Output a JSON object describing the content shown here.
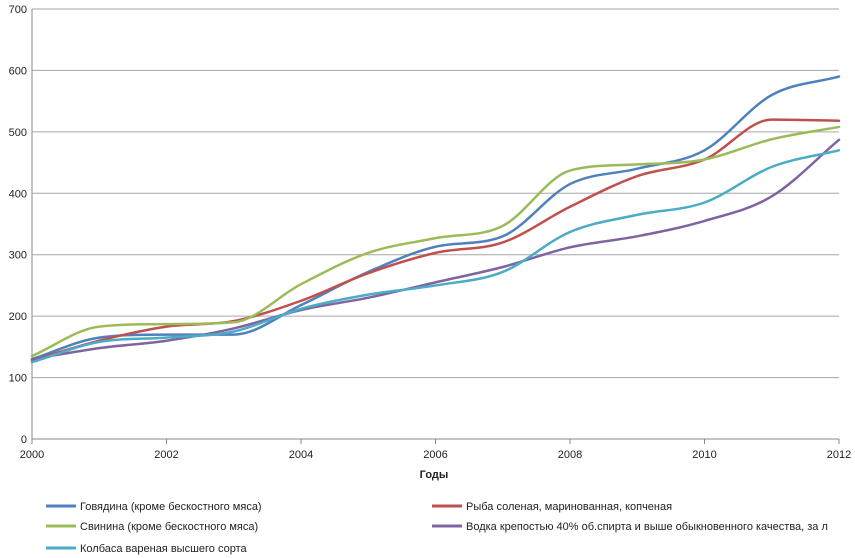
{
  "chart_data": {
    "type": "line",
    "title": "",
    "xlabel": "Годы",
    "ylabel": "",
    "xlim": [
      2000,
      2012
    ],
    "ylim": [
      0,
      700
    ],
    "x_ticks": [
      "2000",
      "2002",
      "2004",
      "2006",
      "2008",
      "2010",
      "2012"
    ],
    "y_ticks": [
      "0",
      "100",
      "200",
      "300",
      "400",
      "500",
      "600",
      "700"
    ],
    "grid": "horizontal",
    "legend_position": "bottom",
    "x": [
      2000,
      2001,
      2002,
      2003,
      2004,
      2005,
      2006,
      2007,
      2008,
      2009,
      2010,
      2011,
      2012
    ],
    "series": [
      {
        "name": "Говядина (кроме бескостного мяса)",
        "color": "#4f81bd",
        "values": [
          130,
          165,
          170,
          170,
          218,
          272,
          313,
          330,
          415,
          440,
          470,
          560,
          590
        ]
      },
      {
        "name": "Рыба соленая, маринованная, копченая",
        "color": "#c0504d",
        "values": [
          128,
          160,
          183,
          192,
          225,
          270,
          303,
          320,
          378,
          428,
          455,
          520,
          518
        ]
      },
      {
        "name": "Свинина (кроме бескостного мяса)",
        "color": "#9bbb59",
        "values": [
          135,
          183,
          187,
          190,
          252,
          303,
          327,
          347,
          437,
          447,
          455,
          488,
          508
        ]
      },
      {
        "name": "Водка крепостью 40% об.спирта и выше обыкновенного качества, за л",
        "color": "#8064a2",
        "values": [
          130,
          148,
          160,
          180,
          210,
          230,
          255,
          280,
          312,
          330,
          355,
          395,
          487
        ]
      },
      {
        "name": "Колбаса вареная высшего сорта",
        "color": "#4bacc6",
        "values": [
          125,
          158,
          165,
          175,
          212,
          235,
          250,
          272,
          337,
          365,
          385,
          443,
          470
        ]
      }
    ]
  }
}
